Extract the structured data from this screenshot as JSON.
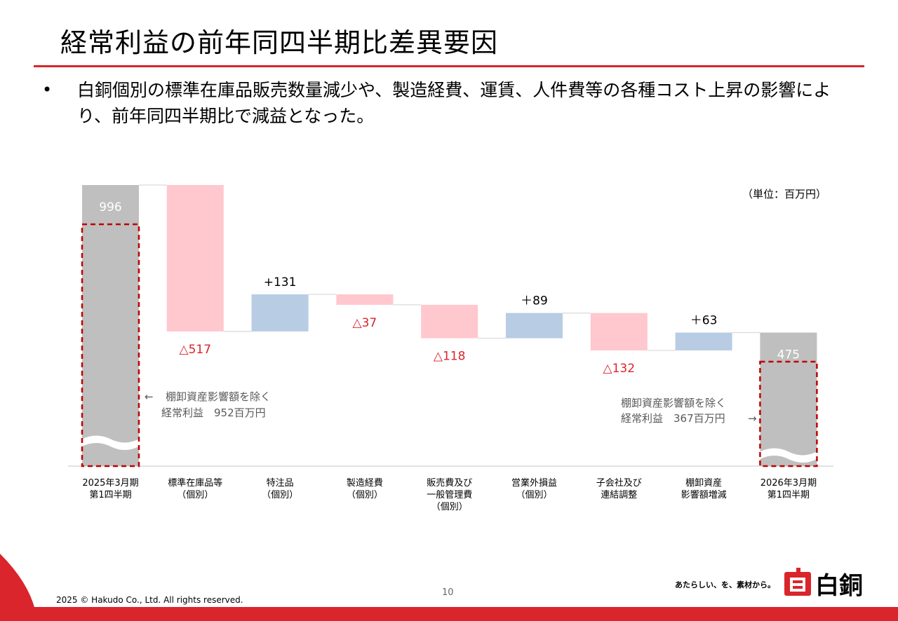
{
  "header": {
    "title": "経常利益の前年同四半期比差異要因",
    "bullet": "白銅個別の標準在庫品販売数量減少や、製造経費、運賃、人件費等の各種コスト上昇の影響により、前年同四半期比で減益となった。"
  },
  "chart_data": {
    "type": "bar",
    "subtype": "waterfall",
    "unit_label": "（単位：百万円）",
    "categories": [
      [
        "2025年3月期",
        "第1四半期"
      ],
      [
        "標準在庫品等",
        "（個別）"
      ],
      [
        "特注品",
        "（個別）"
      ],
      [
        "製造経費",
        "（個別）"
      ],
      [
        "販売費及び",
        "一般管理費",
        "（個別）"
      ],
      [
        "営業外損益",
        "（個別）"
      ],
      [
        "子会社及び",
        "連結調整"
      ],
      [
        "棚卸資産",
        "影響額増減"
      ],
      [
        "2026年3月期",
        "第1四半期"
      ]
    ],
    "values": [
      996,
      -517,
      131,
      -37,
      -118,
      89,
      -132,
      63,
      475
    ],
    "kinds": [
      "total",
      "delta",
      "delta",
      "delta",
      "delta",
      "delta",
      "delta",
      "delta",
      "total"
    ],
    "labels": [
      "996",
      "△517",
      "+131",
      "△37",
      "△118",
      "＋89",
      "△132",
      "＋63",
      "475"
    ],
    "annotations": [
      {
        "arrow": "←",
        "lines": [
          "棚卸資産影響額を除く",
          "経常利益　952百万円"
        ]
      },
      {
        "arrow": "→",
        "lines": [
          "棚卸資産影響額を除く",
          "経常利益　367百万円"
        ]
      }
    ],
    "axis_broken": true,
    "colors": {
      "total": "#bfbfbf",
      "decrease": "#ffc7ce",
      "increase": "#b8cce4",
      "neg_label": "#d9252b",
      "dashed_box": "#c00000",
      "annotation": "#595959"
    }
  },
  "footer": {
    "copyright": "2025 © Hakudo Co., Ltd. All rights reserved.",
    "page_number": "10",
    "tagline": "あたらしい、を、素材から。",
    "logo_text": "白銅",
    "accent": "#d9252b"
  }
}
